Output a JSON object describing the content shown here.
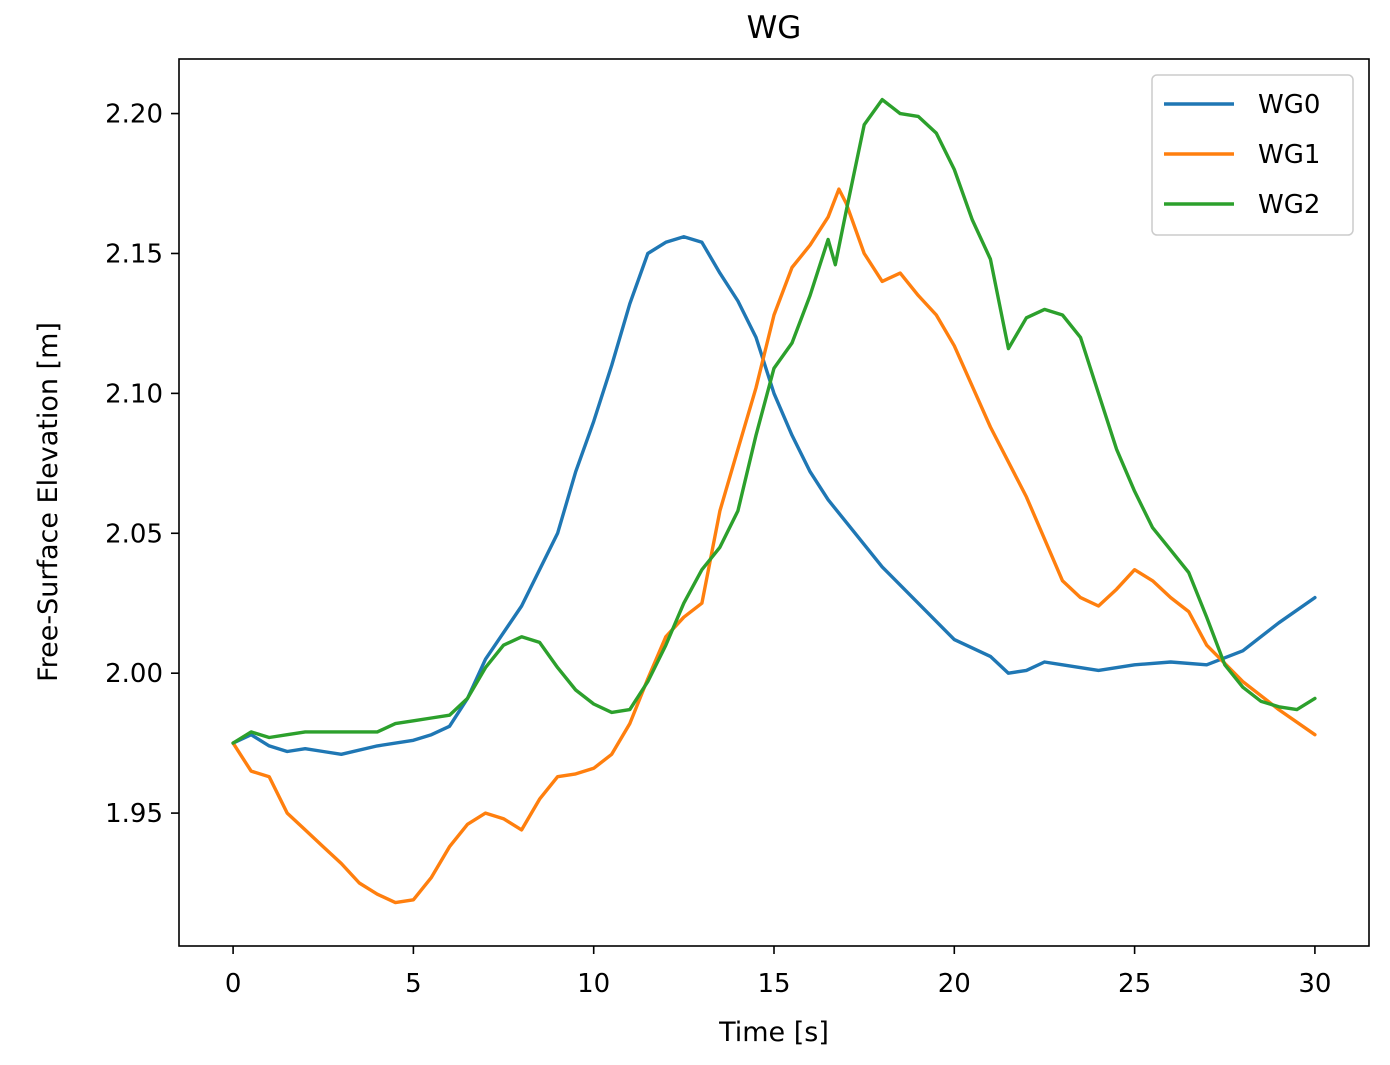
{
  "chart_data": {
    "type": "line",
    "title": "WG",
    "xlabel": "Time [s]",
    "ylabel": "Free-Surface Elevation [m]",
    "xlim": [
      -1.5,
      31.5
    ],
    "ylim": [
      1.9025,
      2.2195
    ],
    "xticks": [
      0,
      5,
      10,
      15,
      20,
      25,
      30
    ],
    "yticks": [
      1.95,
      2.0,
      2.05,
      2.1,
      2.15,
      2.2
    ],
    "xtick_labels": [
      "0",
      "5",
      "10",
      "15",
      "20",
      "25",
      "30"
    ],
    "ytick_labels": [
      "1.95",
      "2.00",
      "2.05",
      "2.10",
      "2.15",
      "2.20"
    ],
    "grid": false,
    "legend_position": "upper right",
    "series": [
      {
        "name": "WG0",
        "color": "#1f77b4",
        "points": [
          [
            0,
            1.975
          ],
          [
            0.5,
            1.978
          ],
          [
            1,
            1.974
          ],
          [
            1.5,
            1.972
          ],
          [
            2,
            1.973
          ],
          [
            2.5,
            1.972
          ],
          [
            3,
            1.971
          ],
          [
            4,
            1.974
          ],
          [
            5,
            1.976
          ],
          [
            5.5,
            1.978
          ],
          [
            6,
            1.981
          ],
          [
            6.5,
            1.991
          ],
          [
            7,
            2.005
          ],
          [
            8,
            2.024
          ],
          [
            9,
            2.05
          ],
          [
            9.5,
            2.072
          ],
          [
            10,
            2.09
          ],
          [
            10.5,
            2.11
          ],
          [
            11,
            2.132
          ],
          [
            11.5,
            2.15
          ],
          [
            12,
            2.154
          ],
          [
            12.5,
            2.156
          ],
          [
            13,
            2.154
          ],
          [
            13.5,
            2.143
          ],
          [
            14,
            2.133
          ],
          [
            14.5,
            2.12
          ],
          [
            15,
            2.1
          ],
          [
            15.5,
            2.085
          ],
          [
            16,
            2.072
          ],
          [
            16.5,
            2.062
          ],
          [
            17,
            2.054
          ],
          [
            18,
            2.038
          ],
          [
            19,
            2.025
          ],
          [
            20,
            2.012
          ],
          [
            21,
            2.006
          ],
          [
            21.5,
            2.0
          ],
          [
            22,
            2.001
          ],
          [
            22.5,
            2.004
          ],
          [
            23,
            2.003
          ],
          [
            24,
            2.001
          ],
          [
            25,
            2.003
          ],
          [
            26,
            2.004
          ],
          [
            27,
            2.003
          ],
          [
            28,
            2.008
          ],
          [
            29,
            2.018
          ],
          [
            30,
            2.027
          ]
        ]
      },
      {
        "name": "WG1",
        "color": "#ff7f0e",
        "points": [
          [
            0,
            1.975
          ],
          [
            0.5,
            1.965
          ],
          [
            1,
            1.963
          ],
          [
            1.5,
            1.95
          ],
          [
            2,
            1.944
          ],
          [
            2.5,
            1.938
          ],
          [
            3,
            1.932
          ],
          [
            3.5,
            1.925
          ],
          [
            4,
            1.921
          ],
          [
            4.5,
            1.918
          ],
          [
            5,
            1.919
          ],
          [
            5.5,
            1.927
          ],
          [
            6,
            1.938
          ],
          [
            6.5,
            1.946
          ],
          [
            7,
            1.95
          ],
          [
            7.5,
            1.948
          ],
          [
            8,
            1.944
          ],
          [
            8.5,
            1.955
          ],
          [
            9,
            1.963
          ],
          [
            9.5,
            1.964
          ],
          [
            10,
            1.966
          ],
          [
            10.5,
            1.971
          ],
          [
            11,
            1.982
          ],
          [
            11.5,
            1.998
          ],
          [
            12,
            2.013
          ],
          [
            12.5,
            2.02
          ],
          [
            13,
            2.025
          ],
          [
            13.5,
            2.058
          ],
          [
            14,
            2.08
          ],
          [
            14.5,
            2.102
          ],
          [
            15,
            2.128
          ],
          [
            15.5,
            2.145
          ],
          [
            16,
            2.153
          ],
          [
            16.5,
            2.163
          ],
          [
            16.8,
            2.173
          ],
          [
            17,
            2.168
          ],
          [
            17.5,
            2.15
          ],
          [
            18,
            2.14
          ],
          [
            18.5,
            2.143
          ],
          [
            19,
            2.135
          ],
          [
            19.5,
            2.128
          ],
          [
            20,
            2.117
          ],
          [
            21,
            2.088
          ],
          [
            22,
            2.063
          ],
          [
            22.5,
            2.048
          ],
          [
            23,
            2.033
          ],
          [
            23.5,
            2.027
          ],
          [
            24,
            2.024
          ],
          [
            24.5,
            2.03
          ],
          [
            25,
            2.037
          ],
          [
            25.5,
            2.033
          ],
          [
            26,
            2.027
          ],
          [
            26.5,
            2.022
          ],
          [
            27,
            2.01
          ],
          [
            28,
            1.997
          ],
          [
            29,
            1.987
          ],
          [
            30,
            1.978
          ]
        ]
      },
      {
        "name": "WG2",
        "color": "#2ca02c",
        "points": [
          [
            0,
            1.975
          ],
          [
            0.5,
            1.979
          ],
          [
            1,
            1.977
          ],
          [
            1.5,
            1.978
          ],
          [
            2,
            1.979
          ],
          [
            3,
            1.979
          ],
          [
            4,
            1.979
          ],
          [
            4.5,
            1.982
          ],
          [
            5,
            1.983
          ],
          [
            5.5,
            1.984
          ],
          [
            6,
            1.985
          ],
          [
            6.5,
            1.991
          ],
          [
            7,
            2.002
          ],
          [
            7.5,
            2.01
          ],
          [
            8,
            2.013
          ],
          [
            8.5,
            2.011
          ],
          [
            9,
            2.002
          ],
          [
            9.5,
            1.994
          ],
          [
            10,
            1.989
          ],
          [
            10.5,
            1.986
          ],
          [
            11,
            1.987
          ],
          [
            11.5,
            1.997
          ],
          [
            12,
            2.01
          ],
          [
            12.5,
            2.025
          ],
          [
            13,
            2.037
          ],
          [
            13.5,
            2.045
          ],
          [
            14,
            2.058
          ],
          [
            14.5,
            2.085
          ],
          [
            15,
            2.109
          ],
          [
            15.5,
            2.118
          ],
          [
            16,
            2.135
          ],
          [
            16.5,
            2.155
          ],
          [
            16.7,
            2.146
          ],
          [
            17,
            2.165
          ],
          [
            17.5,
            2.196
          ],
          [
            18,
            2.205
          ],
          [
            18.5,
            2.2
          ],
          [
            19,
            2.199
          ],
          [
            19.5,
            2.193
          ],
          [
            20,
            2.18
          ],
          [
            20.5,
            2.162
          ],
          [
            21,
            2.148
          ],
          [
            21.5,
            2.116
          ],
          [
            22,
            2.127
          ],
          [
            22.5,
            2.13
          ],
          [
            23,
            2.128
          ],
          [
            23.5,
            2.12
          ],
          [
            24,
            2.1
          ],
          [
            24.5,
            2.08
          ],
          [
            25,
            2.065
          ],
          [
            25.5,
            2.052
          ],
          [
            26,
            2.044
          ],
          [
            26.5,
            2.036
          ],
          [
            27,
            2.02
          ],
          [
            27.5,
            2.003
          ],
          [
            28,
            1.995
          ],
          [
            28.5,
            1.99
          ],
          [
            29,
            1.988
          ],
          [
            29.5,
            1.987
          ],
          [
            30,
            1.991
          ]
        ]
      }
    ]
  }
}
